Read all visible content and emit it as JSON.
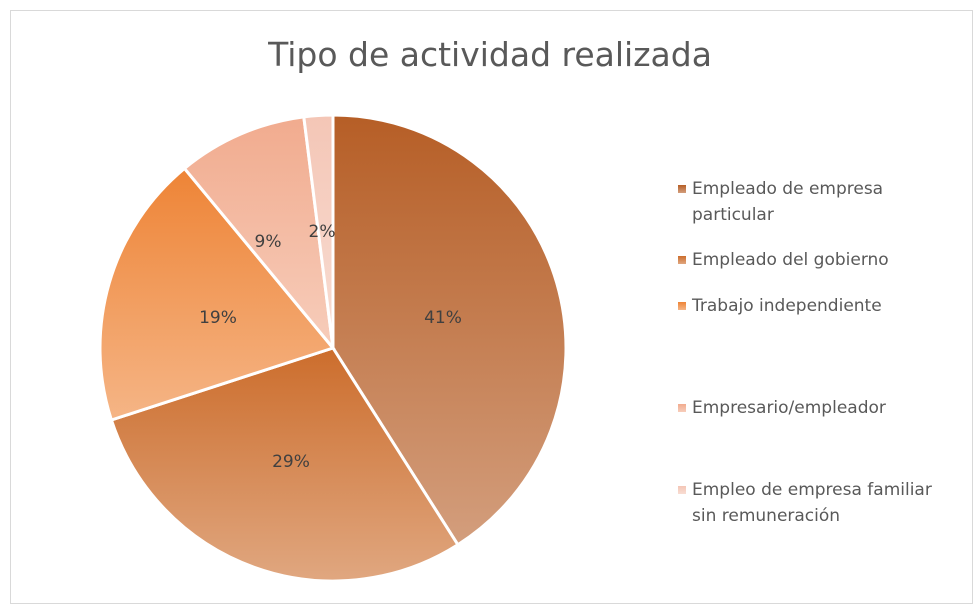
{
  "chart_data": {
    "type": "pie",
    "title": "Tipo de actividad realizada",
    "categories": [
      "Empleado de empresa particular",
      "Empleado del gobierno",
      "Trabajo independiente",
      "Empresario/empleador",
      "Empleo de empresa familiar sin remuneración"
    ],
    "values": [
      41,
      29,
      19,
      9,
      2
    ],
    "value_labels": [
      "41%",
      "29%",
      "19%",
      "9%",
      "2%"
    ],
    "colors": [
      "#b65e26",
      "#cc6d2c",
      "#ee8436",
      "#f1ab8e",
      "#f4c6b6"
    ],
    "legend": "right"
  }
}
